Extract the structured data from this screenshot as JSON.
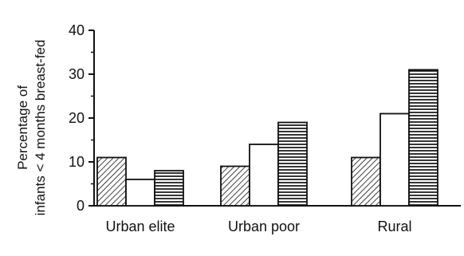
{
  "chart_data": {
    "type": "bar",
    "categories": [
      "Urban elite",
      "Urban poor",
      "Rural"
    ],
    "series": [
      {
        "values": [
          11,
          9,
          11
        ],
        "pattern": "diagonal-hatch"
      },
      {
        "values": [
          6,
          14,
          21
        ],
        "pattern": "white"
      },
      {
        "values": [
          8,
          19,
          31
        ],
        "pattern": "horizontal-stripes"
      }
    ],
    "ylabel_line1": "Percentage of",
    "ylabel_line2": "infants < 4 months breast-fed",
    "ylim": [
      0,
      40
    ],
    "yticks": [
      0,
      10,
      20,
      30,
      40
    ],
    "grid": false,
    "colors": {
      "ink": "#111111",
      "fill": "#ffffff"
    }
  }
}
